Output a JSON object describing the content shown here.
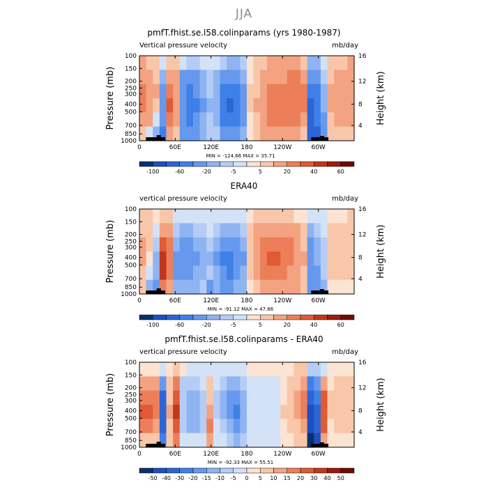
{
  "figure_title": "JJA",
  "chart_data": [
    {
      "type": "heatmap",
      "title": "pmfT.fhist.se.l58.colinparams (yrs 1980-1987)",
      "subtitle_left": "Vertical pressure velocity",
      "subtitle_right": "mb/day",
      "ylabel": "Pressure (mb)",
      "ylabel_right": "Height (km)",
      "pressure_ticks": [
        "100",
        "150",
        "200",
        "250",
        "300",
        "400",
        "500",
        "700",
        "850",
        "1000"
      ],
      "height_ticks": [
        "16",
        "12",
        "8",
        "4"
      ],
      "x_ticks": [
        "0",
        "60E",
        "120E",
        "180",
        "120W",
        "60W"
      ],
      "minmax_text": "MIN = -124.66   MAX =  35.71",
      "colorbar_labels": [
        "-100",
        "-60",
        "-20",
        "-5",
        "5",
        "20",
        "40",
        "60"
      ],
      "grid": [
        [
          10,
          8,
          5,
          -5,
          8,
          5,
          -5,
          -8,
          -8,
          -5,
          -3,
          -5,
          -10,
          -15,
          -15,
          -8,
          3,
          5,
          8,
          10,
          10,
          10,
          12,
          10,
          8,
          -20,
          -15,
          -5,
          5,
          8,
          8,
          10
        ],
        [
          18,
          15,
          8,
          -15,
          15,
          10,
          -25,
          -30,
          -25,
          -15,
          -8,
          -12,
          -30,
          -40,
          -35,
          -20,
          3,
          5,
          10,
          15,
          15,
          18,
          20,
          20,
          15,
          -40,
          -30,
          -10,
          8,
          10,
          10,
          12
        ],
        [
          22,
          18,
          10,
          -25,
          25,
          15,
          -35,
          -45,
          -40,
          -20,
          -10,
          -15,
          -45,
          -60,
          -55,
          -30,
          5,
          8,
          15,
          20,
          22,
          25,
          25,
          25,
          20,
          -55,
          -45,
          -15,
          10,
          15,
          12,
          15
        ],
        [
          20,
          15,
          5,
          -35,
          30,
          15,
          -40,
          -50,
          -45,
          -25,
          -12,
          -20,
          -55,
          -70,
          -60,
          -35,
          5,
          10,
          18,
          25,
          25,
          28,
          28,
          25,
          20,
          -65,
          -55,
          -20,
          10,
          15,
          12,
          15
        ],
        [
          15,
          10,
          -5,
          -40,
          25,
          10,
          -35,
          -45,
          -40,
          -20,
          -10,
          -15,
          -45,
          -60,
          -50,
          -30,
          3,
          8,
          15,
          20,
          22,
          25,
          25,
          22,
          15,
          -70,
          -60,
          -25,
          8,
          10,
          10,
          10
        ],
        [
          5,
          -5,
          -20,
          -45,
          10,
          5,
          -25,
          -30,
          -25,
          -15,
          -8,
          -10,
          -30,
          -40,
          -35,
          -20,
          2,
          5,
          10,
          15,
          15,
          18,
          18,
          15,
          8,
          -80,
          -70,
          -35,
          5,
          8,
          8,
          8
        ]
      ]
    },
    {
      "type": "heatmap",
      "title": "ERA40",
      "subtitle_left": "vertical pressure velocity",
      "subtitle_right": "mb/day",
      "ylabel": "Pressure (mb)",
      "ylabel_right": "Height (km)",
      "pressure_ticks": [
        "100",
        "150",
        "200",
        "250",
        "300",
        "400",
        "500",
        "700",
        "850",
        "1000"
      ],
      "height_ticks": [
        "16",
        "12",
        "8",
        "4"
      ],
      "x_ticks": [
        "0",
        "60E",
        "120E",
        "180",
        "120W",
        "60W"
      ],
      "minmax_text": "MIN = -91.12   MAX =  47.86",
      "colorbar_labels": [
        "-100",
        "-60",
        "-20",
        "-5",
        "5",
        "20",
        "40",
        "60"
      ],
      "grid": [
        [
          5,
          5,
          3,
          5,
          5,
          -3,
          -5,
          -5,
          -3,
          -3,
          -2,
          -3,
          -5,
          -5,
          -5,
          -3,
          2,
          5,
          5,
          5,
          5,
          5,
          5,
          3,
          2,
          -5,
          -3,
          -2,
          3,
          3,
          3,
          5
        ],
        [
          8,
          5,
          -5,
          15,
          10,
          -10,
          -15,
          -15,
          -10,
          -8,
          -5,
          -10,
          -20,
          -20,
          -15,
          -10,
          5,
          10,
          12,
          15,
          15,
          15,
          12,
          10,
          5,
          -15,
          -10,
          -5,
          5,
          5,
          5,
          5
        ],
        [
          10,
          5,
          -10,
          35,
          20,
          -20,
          -30,
          -30,
          -20,
          -15,
          -10,
          -20,
          -35,
          -40,
          -30,
          -20,
          8,
          15,
          20,
          25,
          28,
          25,
          20,
          15,
          8,
          -25,
          -15,
          -10,
          8,
          8,
          8,
          8
        ],
        [
          10,
          3,
          -15,
          45,
          25,
          -25,
          -35,
          -35,
          -25,
          -15,
          -12,
          -25,
          -45,
          -50,
          -40,
          -25,
          8,
          15,
          25,
          30,
          30,
          28,
          22,
          18,
          10,
          -30,
          -20,
          -10,
          8,
          8,
          8,
          8
        ],
        [
          8,
          -5,
          -20,
          40,
          20,
          -25,
          -30,
          -30,
          -20,
          -12,
          -10,
          -20,
          -40,
          -45,
          -35,
          -20,
          5,
          12,
          20,
          25,
          25,
          22,
          18,
          15,
          8,
          -35,
          -25,
          -10,
          5,
          5,
          5,
          5
        ],
        [
          5,
          -15,
          -35,
          25,
          10,
          -15,
          -20,
          -20,
          -15,
          -8,
          -30,
          -15,
          -25,
          -30,
          -20,
          -15,
          3,
          8,
          12,
          15,
          15,
          15,
          12,
          10,
          5,
          -40,
          -30,
          -15,
          3,
          3,
          3,
          3
        ]
      ]
    },
    {
      "type": "heatmap",
      "title": "pmfT.fhist.se.l58.colinparams - ERA40",
      "subtitle_left": "vertical pressure velocity",
      "subtitle_right": "mb/day",
      "ylabel": "Pressure (mb)",
      "ylabel_right": "Height (km)",
      "pressure_ticks": [
        "100",
        "150",
        "200",
        "250",
        "300",
        "400",
        "500",
        "700",
        "850",
        "1000"
      ],
      "height_ticks": [
        "16",
        "12",
        "8",
        "4"
      ],
      "x_ticks": [
        "0",
        "60E",
        "120E",
        "180",
        "120W",
        "60W"
      ],
      "minmax_text": "MIN = -92.33   MAX =  55.51",
      "colorbar_labels": [
        "-50",
        "-40",
        "-30",
        "-20",
        "-15",
        "-10",
        "-5",
        "0",
        "5",
        "10",
        "15",
        "20",
        "30",
        "40",
        "50"
      ],
      "grid": [
        [
          3,
          3,
          2,
          -3,
          3,
          5,
          2,
          -2,
          -3,
          -2,
          -1,
          -2,
          -3,
          -5,
          -5,
          -3,
          1,
          1,
          2,
          3,
          3,
          3,
          3,
          5,
          5,
          -10,
          -8,
          -3,
          2,
          3,
          3,
          3
        ],
        [
          10,
          10,
          10,
          -20,
          5,
          15,
          -8,
          -10,
          -10,
          -5,
          5,
          -5,
          -10,
          -15,
          -15,
          -8,
          -2,
          -3,
          -2,
          -3,
          -2,
          3,
          5,
          8,
          10,
          -30,
          -20,
          10,
          3,
          5,
          5,
          5
        ],
        [
          15,
          15,
          15,
          -35,
          8,
          25,
          -10,
          -15,
          -15,
          -8,
          8,
          -8,
          -15,
          -20,
          -20,
          -12,
          -3,
          -5,
          -3,
          -5,
          -3,
          3,
          5,
          10,
          15,
          -40,
          -30,
          20,
          5,
          5,
          5,
          5
        ],
        [
          20,
          20,
          15,
          -40,
          10,
          30,
          -10,
          -15,
          -15,
          -10,
          10,
          -8,
          -15,
          -20,
          -25,
          -15,
          -3,
          -5,
          -5,
          -5,
          -5,
          5,
          8,
          12,
          15,
          -45,
          -35,
          25,
          5,
          5,
          5,
          5
        ],
        [
          15,
          15,
          10,
          -35,
          8,
          25,
          -8,
          -12,
          -12,
          -8,
          15,
          -5,
          -10,
          -15,
          -20,
          -12,
          -2,
          -3,
          -3,
          -3,
          -3,
          3,
          5,
          8,
          10,
          -50,
          -40,
          20,
          3,
          5,
          5,
          5
        ],
        [
          5,
          5,
          5,
          -25,
          5,
          15,
          -5,
          -5,
          -5,
          -5,
          10,
          -3,
          -5,
          -10,
          -15,
          -8,
          -1,
          -2,
          -2,
          -2,
          -2,
          2,
          3,
          5,
          5,
          -60,
          -50,
          10,
          3,
          3,
          3,
          3
        ]
      ]
    }
  ],
  "palettes": {
    "wide": [
      "#08306b",
      "#1f4fbf",
      "#2c66d6",
      "#3f80e8",
      "#6699ee",
      "#8fb4f2",
      "#b5cdf6",
      "#d4e2f8",
      "#fce3d2",
      "#f8c7aa",
      "#f3a381",
      "#ec7f59",
      "#e05a33",
      "#c2361c",
      "#9b1c0f",
      "#6e0b05"
    ],
    "diff": [
      "#08306b",
      "#1f4fbf",
      "#2c66d6",
      "#3f80e8",
      "#6699ee",
      "#8fb4f2",
      "#b5cdf6",
      "#d4e2f8",
      "#fce3d2",
      "#f8c7aa",
      "#f3a381",
      "#ec7f59",
      "#e05a33",
      "#c2361c",
      "#9b1c0f",
      "#6e0b05"
    ]
  },
  "levels": {
    "wide": [
      -120,
      -100,
      -80,
      -60,
      -40,
      -20,
      -10,
      -5,
      0,
      5,
      10,
      20,
      30,
      40,
      50,
      60
    ],
    "diff": [
      -60,
      -50,
      -40,
      -30,
      -20,
      -15,
      -10,
      -5,
      0,
      5,
      10,
      15,
      20,
      30,
      40,
      50
    ]
  }
}
